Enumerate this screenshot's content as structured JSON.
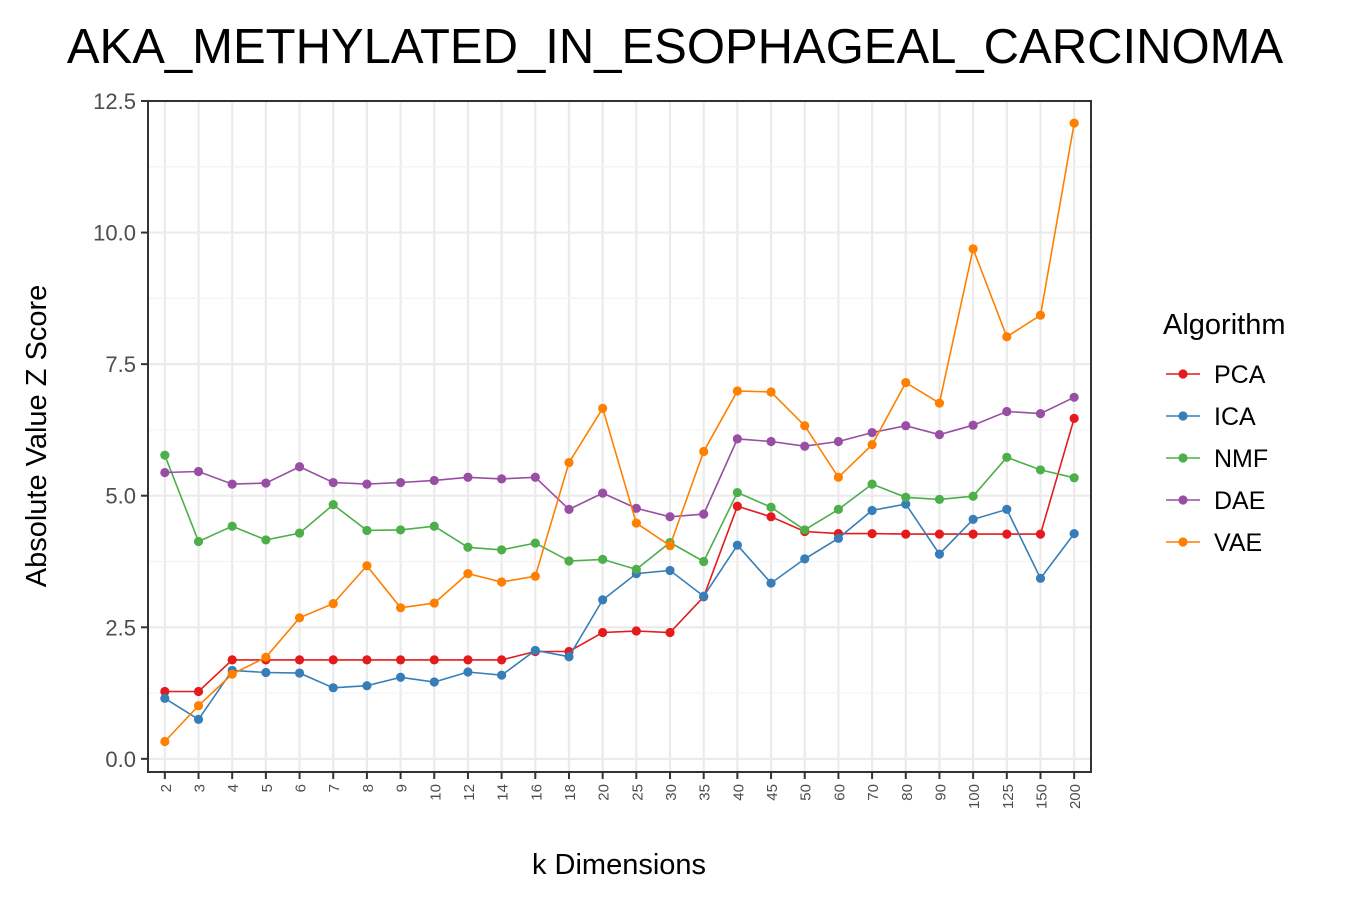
{
  "chart_data": {
    "type": "line",
    "title": "AKA_METHYLATED_IN_ESOPHAGEAL_CARCINOMA",
    "xlabel": "k Dimensions",
    "ylabel": "Absolute Value Z Score",
    "ylim": [
      -0.25,
      12.5
    ],
    "yticks": [
      "0.0",
      "2.5",
      "5.0",
      "7.5",
      "10.0",
      "12.5"
    ],
    "grid": true,
    "legend": {
      "title": "Algorithm",
      "position": "right"
    },
    "categories": [
      "2",
      "3",
      "4",
      "5",
      "6",
      "7",
      "8",
      "9",
      "10",
      "12",
      "14",
      "16",
      "18",
      "20",
      "25",
      "30",
      "35",
      "40",
      "45",
      "50",
      "60",
      "70",
      "80",
      "90",
      "100",
      "125",
      "150",
      "200"
    ],
    "series": [
      {
        "name": "PCA",
        "color": "#e41a1c",
        "values": [
          1.28,
          1.28,
          1.88,
          1.88,
          1.88,
          1.88,
          1.88,
          1.88,
          1.88,
          1.88,
          1.88,
          2.04,
          2.04,
          2.4,
          2.43,
          2.4,
          3.08,
          4.8,
          4.6,
          4.32,
          4.28,
          4.28,
          4.27,
          4.27,
          4.27,
          4.27,
          4.27,
          6.47
        ]
      },
      {
        "name": "ICA",
        "color": "#377eb8",
        "values": [
          1.15,
          0.75,
          1.68,
          1.64,
          1.63,
          1.35,
          1.39,
          1.55,
          1.46,
          1.65,
          1.59,
          2.06,
          1.94,
          3.02,
          3.52,
          3.58,
          3.09,
          4.06,
          3.34,
          3.8,
          4.19,
          4.72,
          4.84,
          3.89,
          4.55,
          4.74,
          3.43,
          4.28
        ]
      },
      {
        "name": "NMF",
        "color": "#4daf4a",
        "values": [
          5.77,
          4.13,
          4.42,
          4.16,
          4.29,
          4.83,
          4.34,
          4.35,
          4.42,
          4.02,
          3.97,
          4.1,
          3.76,
          3.79,
          3.6,
          4.11,
          3.75,
          5.06,
          4.78,
          4.35,
          4.74,
          5.22,
          4.97,
          4.93,
          4.99,
          5.73,
          5.49,
          5.34
        ]
      },
      {
        "name": "DAE",
        "color": "#984ea3",
        "values": [
          5.44,
          5.46,
          5.22,
          5.24,
          5.55,
          5.25,
          5.22,
          5.25,
          5.29,
          5.35,
          5.32,
          5.35,
          4.74,
          5.05,
          4.76,
          4.6,
          4.65,
          6.08,
          6.03,
          5.94,
          6.03,
          6.2,
          6.33,
          6.16,
          6.34,
          6.6,
          6.56,
          6.87
        ]
      },
      {
        "name": "VAE",
        "color": "#ff7f00",
        "values": [
          0.33,
          1.01,
          1.61,
          1.93,
          2.68,
          2.95,
          3.67,
          2.87,
          2.96,
          3.52,
          3.36,
          3.47,
          5.63,
          6.66,
          4.48,
          4.05,
          5.84,
          6.99,
          6.97,
          6.33,
          5.35,
          5.97,
          7.15,
          6.76,
          9.69,
          8.02,
          8.43,
          12.08
        ]
      }
    ]
  }
}
